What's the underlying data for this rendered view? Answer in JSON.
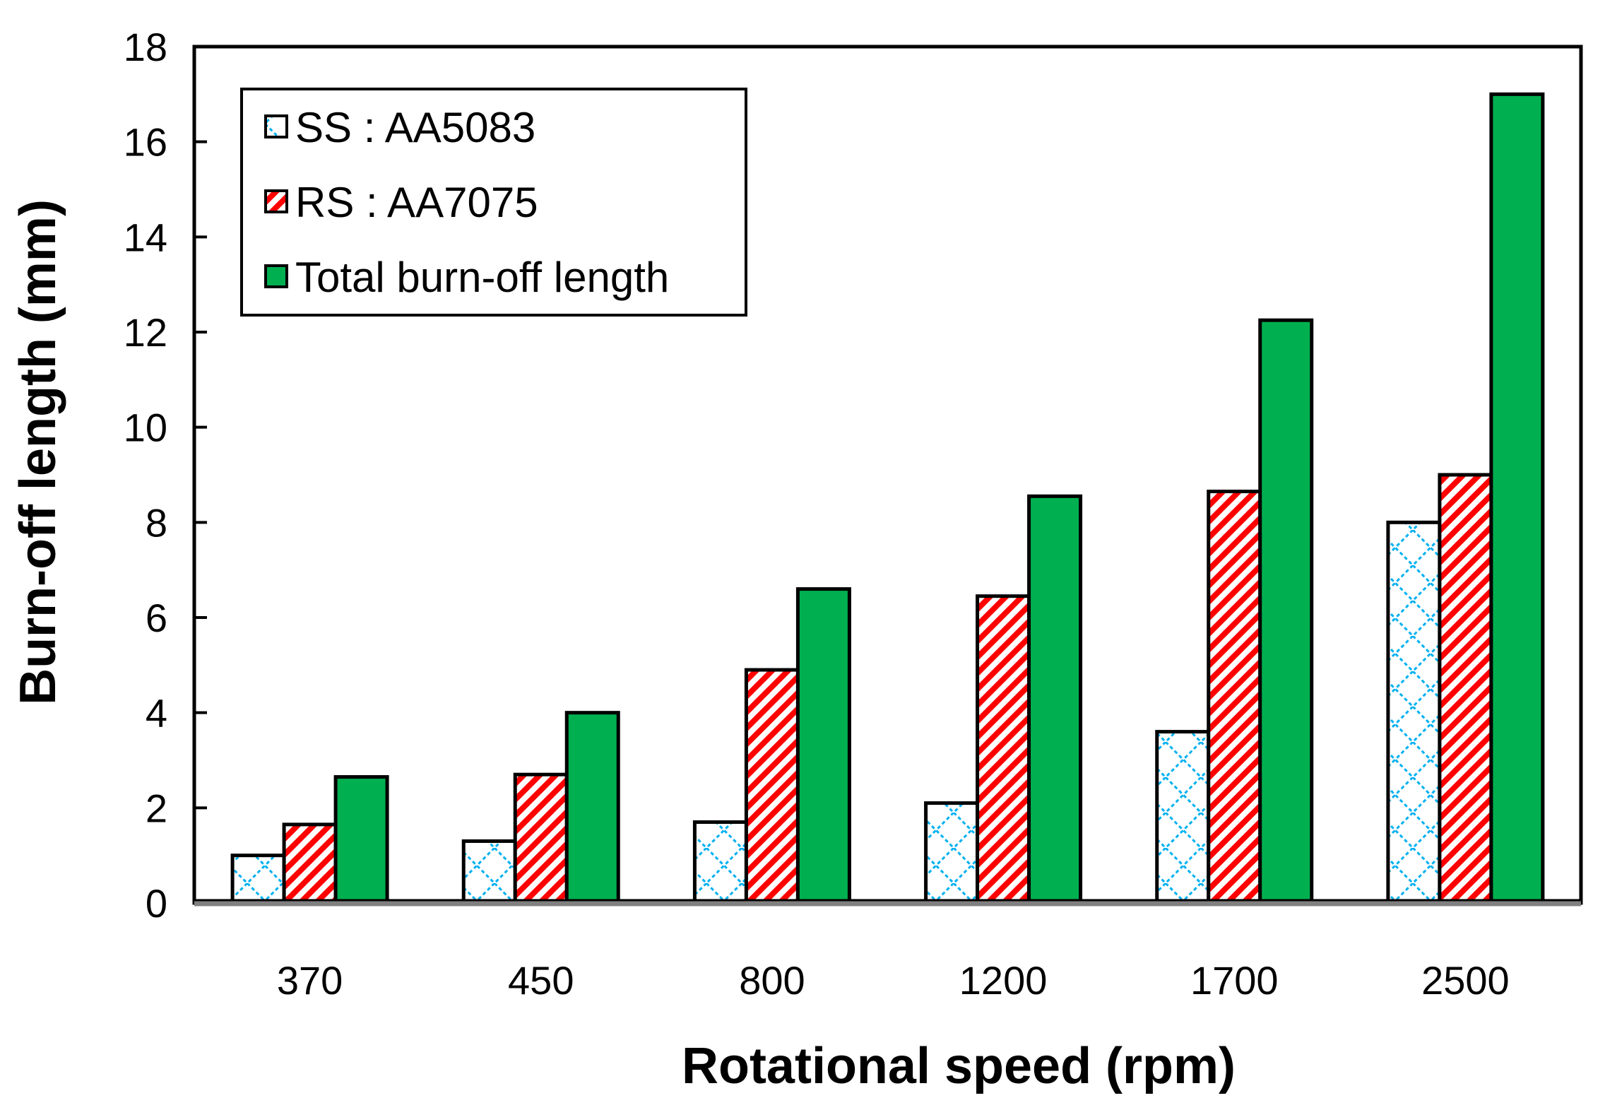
{
  "chart_data": {
    "type": "bar",
    "title": "",
    "xlabel": "Rotational speed (rpm)",
    "ylabel": "Burn-off length (mm)",
    "categories": [
      "370",
      "450",
      "800",
      "1200",
      "1700",
      "2500"
    ],
    "ylim": [
      0,
      18
    ],
    "yticks": [
      "0",
      "2",
      "4",
      "6",
      "8",
      "10",
      "12",
      "14",
      "16",
      "18"
    ],
    "series": [
      {
        "name": "SS : AA5083",
        "values": [
          1.0,
          1.3,
          1.7,
          2.1,
          3.6,
          8.0
        ],
        "color": "#00b0f0",
        "pattern": "diamond-lattice"
      },
      {
        "name": "RS : AA7075",
        "values": [
          1.65,
          2.7,
          4.9,
          6.45,
          8.65,
          9.0
        ],
        "color": "#ff0000",
        "pattern": "diagonal-stripes"
      },
      {
        "name": "Total burn-off length",
        "values": [
          2.65,
          4.0,
          6.6,
          8.55,
          12.25,
          17.0
        ],
        "color": "#00b050",
        "pattern": "solid"
      }
    ],
    "legend_position": "top-left",
    "grid": false
  }
}
